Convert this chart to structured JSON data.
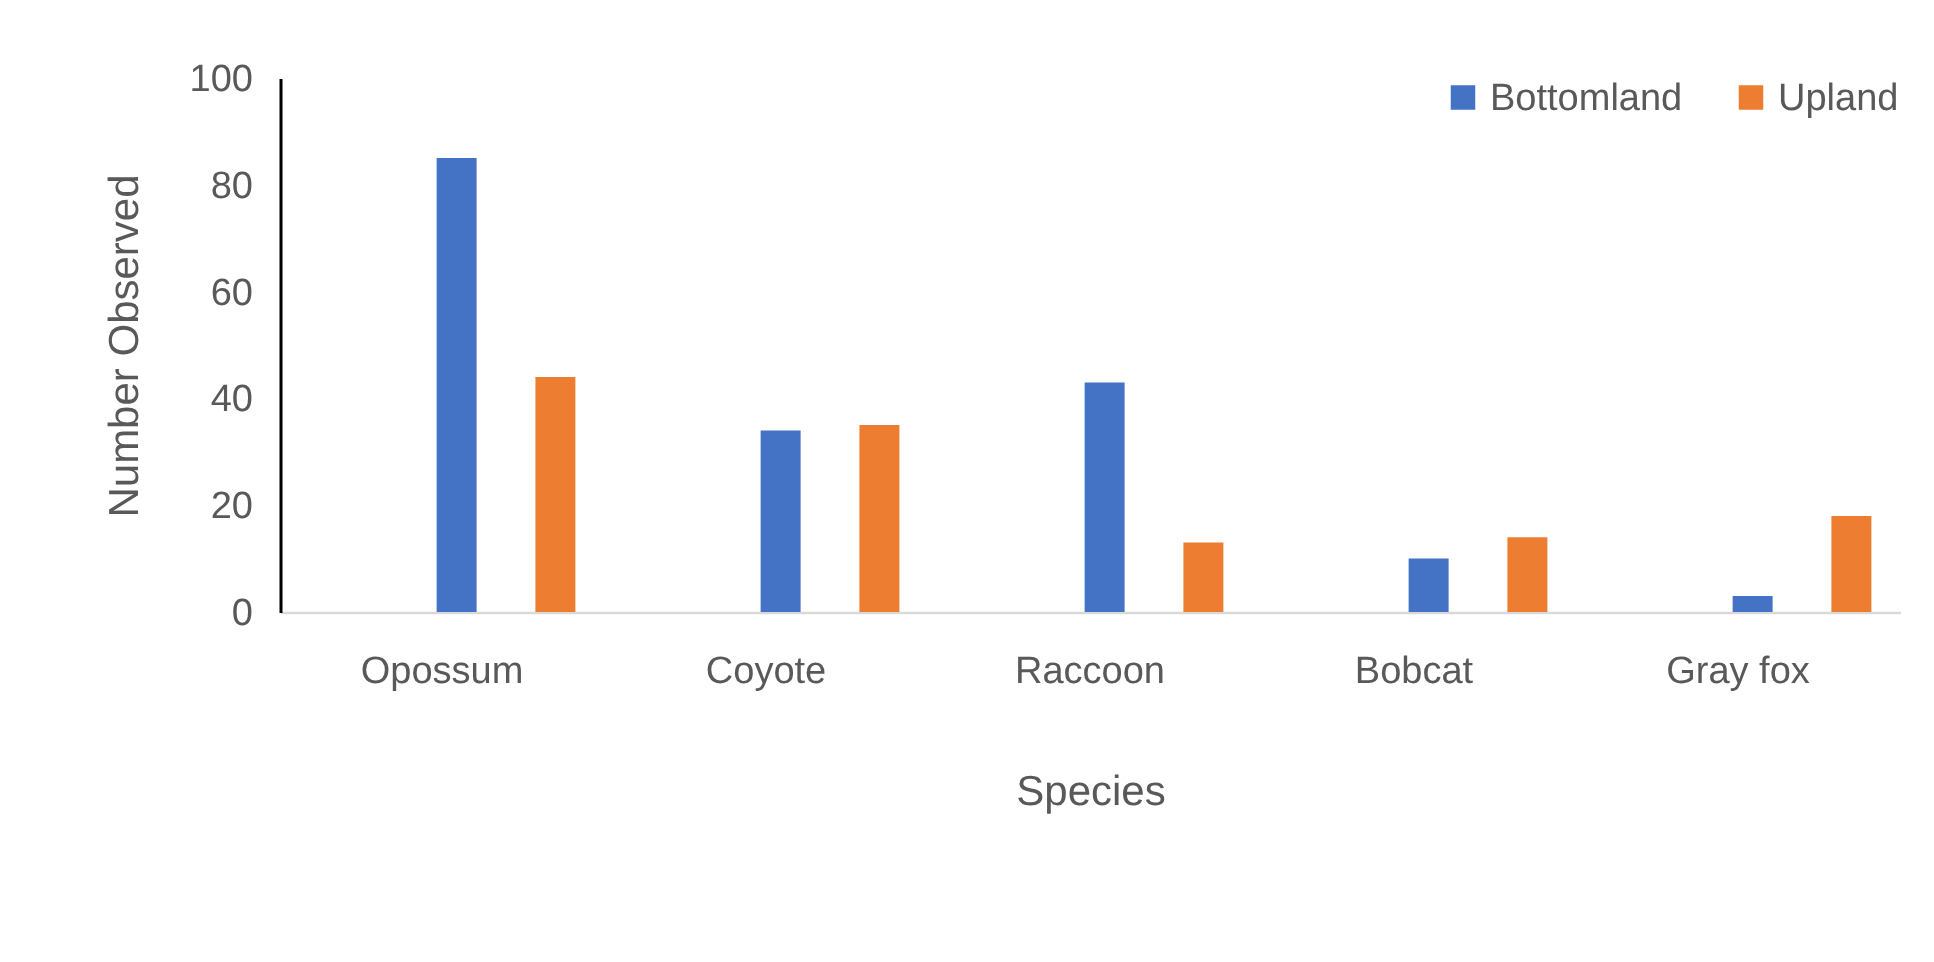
{
  "chart_data": {
    "type": "bar",
    "xlabel": "Species",
    "ylabel": "Number Observed",
    "categories": [
      "Opossum",
      "Coyote",
      "Raccoon",
      "Bobcat",
      "Gray fox"
    ],
    "series": [
      {
        "name": "Bottomland",
        "color": "#4472c4",
        "values": [
          85,
          34,
          43,
          10,
          3
        ]
      },
      {
        "name": "Upland",
        "color": "#ed7d31",
        "values": [
          44,
          35,
          13,
          14,
          18
        ]
      }
    ],
    "ylim": [
      0,
      100
    ],
    "yticks": [
      0,
      20,
      40,
      60,
      80,
      100
    ],
    "legend": "top right"
  }
}
